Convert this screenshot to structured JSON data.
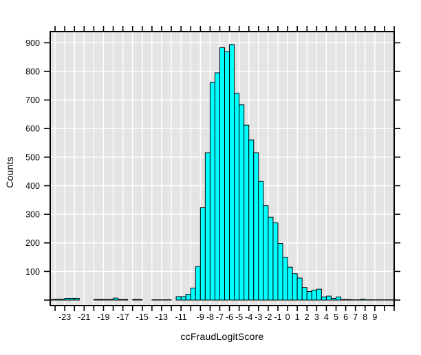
{
  "chart_data": {
    "type": "bar",
    "subtype": "histogram",
    "title": "",
    "xlabel": "ccFraudLogitScore",
    "ylabel": "Counts",
    "bin_width": 0.5,
    "bin_starts": [
      -24.5,
      -24,
      -23.5,
      -23,
      -22.5,
      -22,
      -21.5,
      -21,
      -20.5,
      -20,
      -19.5,
      -19,
      -18.5,
      -18,
      -17.5,
      -17,
      -16.5,
      -16,
      -15.5,
      -15,
      -14.5,
      -14,
      -13.5,
      -13,
      -12.5,
      -12,
      -11.5,
      -11,
      -10.5,
      -10,
      -9.5,
      -9,
      -8.5,
      -8,
      -7.5,
      -7,
      -6.5,
      -6,
      -5.5,
      -5,
      -4.5,
      -4,
      -3.5,
      -3,
      -2.5,
      -2,
      -1.5,
      -1,
      -0.5,
      0,
      0.5,
      1,
      1.5,
      2,
      2.5,
      3,
      3.5,
      4,
      4.5,
      5,
      5.5,
      6,
      6.5,
      7,
      7.5,
      8,
      8.5,
      9,
      9.5,
      10,
      10.5
    ],
    "counts": [
      2,
      3,
      3,
      6,
      6,
      6,
      0,
      0,
      0,
      2,
      2,
      2,
      2,
      7,
      2,
      2,
      0,
      2,
      2,
      0,
      0,
      1,
      1,
      1,
      1,
      0,
      12,
      12,
      20,
      42,
      117,
      323,
      515,
      761,
      795,
      883,
      869,
      894,
      723,
      683,
      612,
      560,
      515,
      415,
      330,
      290,
      270,
      198,
      150,
      115,
      92,
      77,
      44,
      30,
      35,
      38,
      11,
      14,
      6,
      11,
      2,
      2,
      1,
      1,
      3,
      1,
      1,
      1,
      1,
      1,
      1
    ],
    "xlim": [
      -24.5,
      11
    ],
    "ylim": [
      0,
      942
    ],
    "x_tick_step": 1,
    "x_labeled_ticks": [
      -23,
      -21,
      -19,
      -17,
      -15,
      -13,
      -11,
      -9,
      -8,
      -7,
      -6,
      -5,
      -4,
      -3,
      -2,
      -1,
      0,
      1,
      2,
      3,
      4,
      5,
      6,
      7,
      8,
      9
    ],
    "y_labeled_ticks": [
      100,
      200,
      300,
      400,
      500,
      600,
      700,
      800,
      900
    ],
    "y_tick_step": 100,
    "grid": true,
    "legend": false,
    "colors": {
      "bar_fill": "#00ffff",
      "bar_stroke": "#000000",
      "plot_bg": "#e4e4e4",
      "grid": "#ffffff",
      "border": "#000000",
      "text": "#000000",
      "outer_bg": "#ffffff"
    }
  }
}
